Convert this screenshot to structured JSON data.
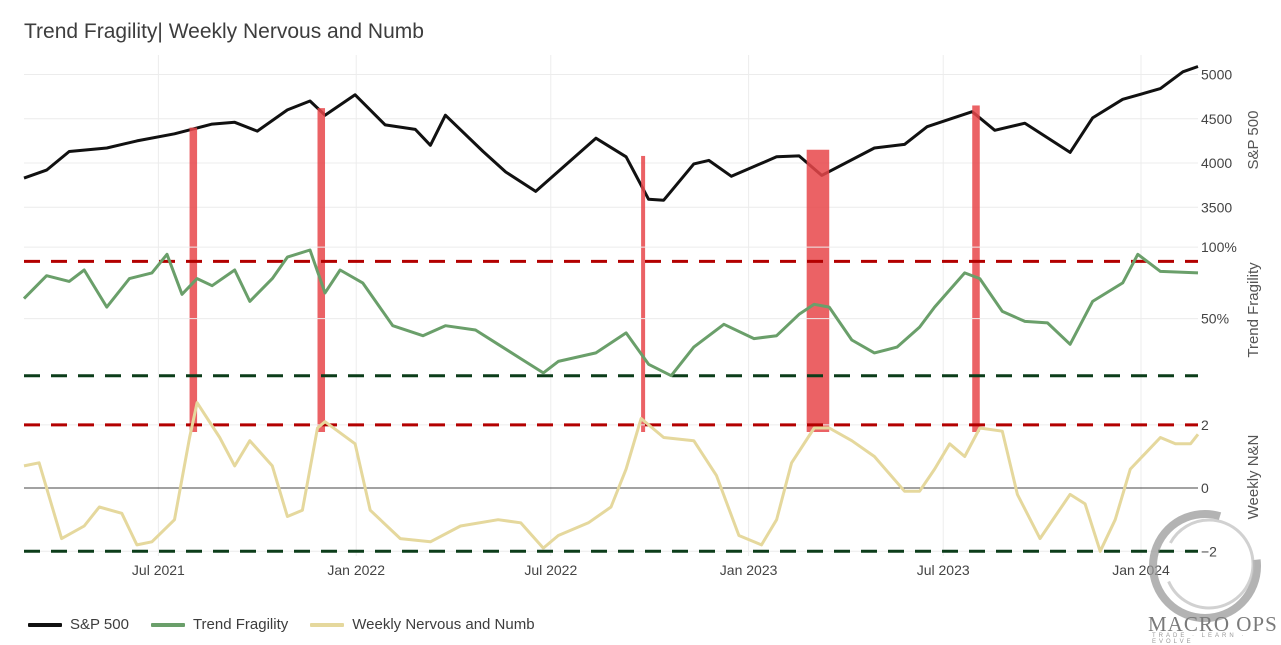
{
  "title": "Trend Fragility| Weekly Nervous and Numb",
  "legend": [
    {
      "name": "S&P 500",
      "color": "#111111"
    },
    {
      "name": "Trend Fragility",
      "color": "#6a9f6a"
    },
    {
      "name": "Weekly Nervous and Numb",
      "color": "#e5d89d"
    }
  ],
  "logo": {
    "text": "MACRO OPS",
    "tagline": "TRADE · LEARN · EVOLVE"
  },
  "chart_data": {
    "type": "line",
    "title": "Trend Fragility| Weekly Nervous and Numb",
    "x_range": [
      "2021-02-26",
      "2024-02-23"
    ],
    "x_ticks": [
      "Jul 2021",
      "Jan 2022",
      "Jul 2022",
      "Jan 2023",
      "Jul 2023",
      "Jan 2024"
    ],
    "panels": [
      {
        "id": "sp500",
        "ylabel": "S&P 500",
        "y_ticks": [
          "3500",
          "4000",
          "4500",
          "5000"
        ],
        "ylim": [
          3300,
          5220
        ],
        "series": [
          {
            "name": "S&P 500",
            "color": "#111111",
            "points": [
              [
                "2021-02-26",
                3830
              ],
              [
                "2021-03-19",
                3920
              ],
              [
                "2021-04-09",
                4130
              ],
              [
                "2021-05-14",
                4170
              ],
              [
                "2021-06-11",
                4250
              ],
              [
                "2021-07-16",
                4330
              ],
              [
                "2021-08-20",
                4440
              ],
              [
                "2021-09-10",
                4460
              ],
              [
                "2021-10-01",
                4360
              ],
              [
                "2021-10-29",
                4600
              ],
              [
                "2021-11-19",
                4700
              ],
              [
                "2021-12-03",
                4540
              ],
              [
                "2021-12-31",
                4770
              ],
              [
                "2022-01-28",
                4430
              ],
              [
                "2022-02-25",
                4380
              ],
              [
                "2022-03-11",
                4200
              ],
              [
                "2022-03-25",
                4540
              ],
              [
                "2022-04-29",
                4130
              ],
              [
                "2022-05-20",
                3900
              ],
              [
                "2022-06-17",
                3680
              ],
              [
                "2022-07-29",
                4130
              ],
              [
                "2022-08-12",
                4280
              ],
              [
                "2022-09-09",
                4070
              ],
              [
                "2022-09-30",
                3590
              ],
              [
                "2022-10-14",
                3580
              ],
              [
                "2022-11-11",
                3990
              ],
              [
                "2022-11-25",
                4030
              ],
              [
                "2022-12-16",
                3850
              ],
              [
                "2023-01-27",
                4070
              ],
              [
                "2023-02-17",
                4080
              ],
              [
                "2023-03-10",
                3860
              ],
              [
                "2023-04-28",
                4170
              ],
              [
                "2023-05-26",
                4210
              ],
              [
                "2023-06-16",
                4410
              ],
              [
                "2023-07-28",
                4580
              ],
              [
                "2023-08-18",
                4370
              ],
              [
                "2023-09-15",
                4450
              ],
              [
                "2023-10-27",
                4120
              ],
              [
                "2023-11-17",
                4510
              ],
              [
                "2023-12-15",
                4720
              ],
              [
                "2024-01-19",
                4840
              ],
              [
                "2024-02-09",
                5030
              ],
              [
                "2024-02-23",
                5090
              ]
            ]
          }
        ],
        "signal_bars": [
          {
            "start": "2021-07-30",
            "end": "2021-08-06",
            "top": 4400
          },
          {
            "start": "2021-11-26",
            "end": "2021-12-03",
            "top": 4620
          },
          {
            "start": "2022-09-23",
            "end": "2022-09-26",
            "top": 4080
          },
          {
            "start": "2023-02-24",
            "end": "2023-03-17",
            "top": 4150
          },
          {
            "start": "2023-07-28",
            "end": "2023-08-04",
            "top": 4650
          }
        ]
      },
      {
        "id": "trend_fragility",
        "ylabel": "Trend Fragility",
        "y_ticks": [
          "50%",
          "100%"
        ],
        "ylim": [
          0,
          112
        ],
        "thresholds": [
          {
            "value": 90,
            "color": "#b30000"
          },
          {
            "value": 10,
            "color": "#0c3d1a"
          }
        ],
        "series": [
          {
            "name": "Trend Fragility",
            "color": "#6a9f6a",
            "points": [
              [
                "2021-02-26",
                64
              ],
              [
                "2021-03-19",
                80
              ],
              [
                "2021-04-09",
                76
              ],
              [
                "2021-04-23",
                84
              ],
              [
                "2021-05-14",
                58
              ],
              [
                "2021-06-04",
                78
              ],
              [
                "2021-06-25",
                82
              ],
              [
                "2021-07-09",
                95
              ],
              [
                "2021-07-23",
                67
              ],
              [
                "2021-08-06",
                78
              ],
              [
                "2021-08-20",
                73
              ],
              [
                "2021-09-10",
                84
              ],
              [
                "2021-09-24",
                62
              ],
              [
                "2021-10-15",
                78
              ],
              [
                "2021-10-29",
                93
              ],
              [
                "2021-11-19",
                98
              ],
              [
                "2021-12-03",
                68
              ],
              [
                "2021-12-17",
                84
              ],
              [
                "2022-01-07",
                75
              ],
              [
                "2022-02-04",
                45
              ],
              [
                "2022-03-04",
                38
              ],
              [
                "2022-03-25",
                45
              ],
              [
                "2022-04-22",
                42
              ],
              [
                "2022-05-13",
                32
              ],
              [
                "2022-06-03",
                22
              ],
              [
                "2022-06-24",
                12
              ],
              [
                "2022-07-08",
                20
              ],
              [
                "2022-08-12",
                26
              ],
              [
                "2022-08-26",
                33
              ],
              [
                "2022-09-09",
                40
              ],
              [
                "2022-09-30",
                18
              ],
              [
                "2022-10-21",
                10
              ],
              [
                "2022-11-11",
                30
              ],
              [
                "2022-12-09",
                46
              ],
              [
                "2023-01-06",
                36
              ],
              [
                "2023-01-27",
                38
              ],
              [
                "2023-02-17",
                53
              ],
              [
                "2023-03-03",
                60
              ],
              [
                "2023-03-17",
                58
              ],
              [
                "2023-04-07",
                35
              ],
              [
                "2023-04-28",
                26
              ],
              [
                "2023-05-19",
                30
              ],
              [
                "2023-06-09",
                44
              ],
              [
                "2023-06-23",
                58
              ],
              [
                "2023-07-21",
                82
              ],
              [
                "2023-08-04",
                78
              ],
              [
                "2023-08-25",
                55
              ],
              [
                "2023-09-15",
                48
              ],
              [
                "2023-10-06",
                47
              ],
              [
                "2023-10-27",
                32
              ],
              [
                "2023-11-17",
                62
              ],
              [
                "2023-12-15",
                75
              ],
              [
                "2023-12-29",
                95
              ],
              [
                "2024-01-19",
                83
              ],
              [
                "2024-02-23",
                82
              ]
            ]
          }
        ]
      },
      {
        "id": "weekly_nn",
        "ylabel": "Weekly N&N",
        "y_ticks": [
          "−2",
          "0",
          "2"
        ],
        "ylim": [
          -2.15,
          2.85
        ],
        "thresholds": [
          {
            "value": 2,
            "color": "#b30000"
          },
          {
            "value": -2,
            "color": "#0c3d1a"
          }
        ],
        "zero_line": true,
        "series": [
          {
            "name": "Weekly Nervous and Numb",
            "color": "#e5d89d",
            "points": [
              [
                "2021-02-26",
                0.7
              ],
              [
                "2021-03-12",
                0.8
              ],
              [
                "2021-04-02",
                -1.6
              ],
              [
                "2021-04-23",
                -1.2
              ],
              [
                "2021-05-07",
                -0.6
              ],
              [
                "2021-05-28",
                -0.8
              ],
              [
                "2021-06-11",
                -1.8
              ],
              [
                "2021-06-25",
                -1.7
              ],
              [
                "2021-07-16",
                -1.0
              ],
              [
                "2021-07-30",
                1.6
              ],
              [
                "2021-08-06",
                2.7
              ],
              [
                "2021-08-27",
                1.6
              ],
              [
                "2021-09-10",
                0.7
              ],
              [
                "2021-09-24",
                1.5
              ],
              [
                "2021-10-15",
                0.7
              ],
              [
                "2021-10-29",
                -0.9
              ],
              [
                "2021-11-12",
                -0.7
              ],
              [
                "2021-11-26",
                1.9
              ],
              [
                "2021-12-03",
                2.1
              ],
              [
                "2021-12-31",
                1.4
              ],
              [
                "2022-01-14",
                -0.7
              ],
              [
                "2022-02-11",
                -1.6
              ],
              [
                "2022-03-11",
                -1.7
              ],
              [
                "2022-04-08",
                -1.2
              ],
              [
                "2022-05-13",
                -1.0
              ],
              [
                "2022-06-03",
                -1.1
              ],
              [
                "2022-06-24",
                -1.9
              ],
              [
                "2022-07-08",
                -1.5
              ],
              [
                "2022-08-05",
                -1.1
              ],
              [
                "2022-08-26",
                -0.6
              ],
              [
                "2022-09-09",
                0.6
              ],
              [
                "2022-09-23",
                2.2
              ],
              [
                "2022-10-14",
                1.6
              ],
              [
                "2022-11-11",
                1.5
              ],
              [
                "2022-12-02",
                0.4
              ],
              [
                "2022-12-23",
                -1.5
              ],
              [
                "2023-01-13",
                -1.8
              ],
              [
                "2023-01-27",
                -1.0
              ],
              [
                "2023-02-10",
                0.8
              ],
              [
                "2023-03-03",
                1.9
              ],
              [
                "2023-03-17",
                1.9
              ],
              [
                "2023-04-07",
                1.5
              ],
              [
                "2023-04-28",
                1.0
              ],
              [
                "2023-05-26",
                -0.1
              ],
              [
                "2023-06-09",
                -0.1
              ],
              [
                "2023-06-23",
                0.6
              ],
              [
                "2023-07-07",
                1.4
              ],
              [
                "2023-07-21",
                1.0
              ],
              [
                "2023-08-04",
                1.9
              ],
              [
                "2023-08-25",
                1.8
              ],
              [
                "2023-09-08",
                -0.2
              ],
              [
                "2023-09-29",
                -1.6
              ],
              [
                "2023-10-13",
                -0.9
              ],
              [
                "2023-10-27",
                -0.2
              ],
              [
                "2023-11-10",
                -0.5
              ],
              [
                "2023-11-24",
                -2.0
              ],
              [
                "2023-12-08",
                -1.0
              ],
              [
                "2023-12-22",
                0.6
              ],
              [
                "2024-01-19",
                1.6
              ],
              [
                "2024-02-02",
                1.4
              ],
              [
                "2024-02-16",
                1.4
              ],
              [
                "2024-02-23",
                1.7
              ]
            ]
          }
        ]
      }
    ]
  }
}
